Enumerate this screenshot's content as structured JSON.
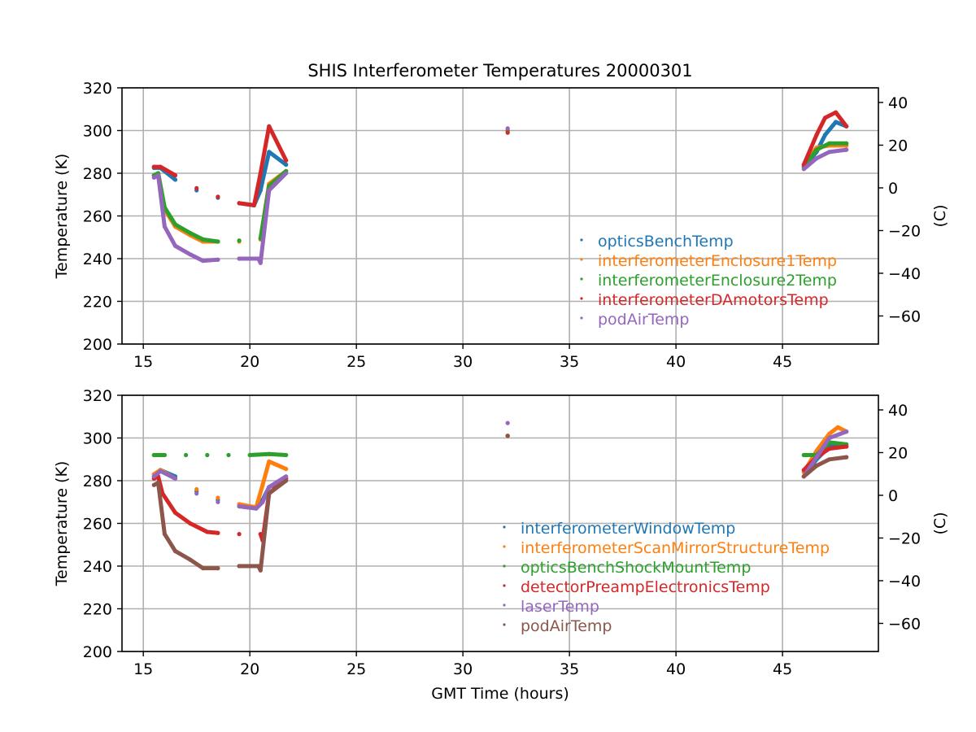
{
  "figure": {
    "title": "SHIS Interferometer Temperatures 20000301",
    "xlabel": "GMT Time (hours)"
  },
  "chart_data": [
    {
      "type": "scatter",
      "ylabel": "Temperature (K)",
      "ylabel_right": "(C)",
      "xlim": [
        14,
        49.5
      ],
      "ylim": [
        200,
        320
      ],
      "xticks": [
        15,
        20,
        25,
        30,
        35,
        40,
        45
      ],
      "yticks": [
        200,
        220,
        240,
        260,
        280,
        300,
        320
      ],
      "yticks_right": [
        40,
        20,
        0,
        -20,
        -40,
        -60
      ],
      "grid": true,
      "legend_position": "center-right",
      "series": [
        {
          "name": "opticsBenchTemp",
          "color": "#1f77b4",
          "points": [
            [
              15.5,
              282.5
            ],
            [
              15.8,
              282.5
            ],
            [
              16.5,
              277
            ],
            [
              17.5,
              272
            ],
            [
              18.5,
              268.5
            ],
            [
              19.5,
              266
            ],
            [
              20.2,
              265
            ],
            [
              20.5,
              272
            ],
            [
              20.9,
              290
            ],
            [
              21.7,
              284
            ],
            [
              32.1,
              300
            ],
            [
              46.0,
              283
            ],
            [
              46.6,
              290
            ],
            [
              47.0,
              298
            ],
            [
              47.5,
              304
            ],
            [
              48.0,
              302
            ]
          ]
        },
        {
          "name": "interferometerEnclosure1Temp",
          "color": "#ff7f0e",
          "points": [
            [
              15.5,
              279
            ],
            [
              15.7,
              280
            ],
            [
              16.0,
              263
            ],
            [
              16.5,
              255
            ],
            [
              17.2,
              251
            ],
            [
              17.8,
              248
            ],
            [
              18.5,
              248
            ],
            [
              19.5,
              248
            ],
            [
              20.5,
              249
            ],
            [
              20.9,
              275
            ],
            [
              21.7,
              281
            ],
            [
              32.1,
              300
            ],
            [
              46.0,
              284
            ],
            [
              46.6,
              292
            ],
            [
              47.2,
              293
            ],
            [
              48.0,
              293
            ]
          ]
        },
        {
          "name": "interferometerEnclosure2Temp",
          "color": "#2ca02c",
          "points": [
            [
              15.5,
              279
            ],
            [
              15.7,
              280
            ],
            [
              16.0,
              264
            ],
            [
              16.5,
              256
            ],
            [
              17.2,
              252
            ],
            [
              17.8,
              249
            ],
            [
              18.5,
              248
            ],
            [
              19.5,
              248.5
            ],
            [
              20.5,
              249.5
            ],
            [
              20.9,
              274
            ],
            [
              21.7,
              281
            ],
            [
              32.1,
              300
            ],
            [
              46.0,
              283
            ],
            [
              46.6,
              291
            ],
            [
              47.2,
              294
            ],
            [
              48.0,
              294
            ]
          ]
        },
        {
          "name": "interferometerDAmotorsTemp",
          "color": "#d62728",
          "points": [
            [
              15.5,
              283
            ],
            [
              15.8,
              283
            ],
            [
              16.5,
              279
            ],
            [
              17.5,
              273
            ],
            [
              18.5,
              269
            ],
            [
              19.5,
              266
            ],
            [
              20.2,
              265
            ],
            [
              20.5,
              280
            ],
            [
              20.9,
              302
            ],
            [
              21.7,
              286
            ],
            [
              32.1,
              299
            ],
            [
              46.0,
              284
            ],
            [
              46.6,
              298
            ],
            [
              47.0,
              306
            ],
            [
              47.5,
              308.5
            ],
            [
              48.0,
              302
            ]
          ]
        },
        {
          "name": "podAirTemp",
          "color": "#9467bd",
          "points": [
            [
              15.5,
              278
            ],
            [
              15.7,
              279
            ],
            [
              16.0,
              255
            ],
            [
              16.5,
              246
            ],
            [
              17.2,
              242
            ],
            [
              17.8,
              239
            ],
            [
              18.5,
              239.5
            ],
            [
              19.5,
              240
            ],
            [
              20.4,
              240
            ],
            [
              20.5,
              238
            ],
            [
              20.9,
              272
            ],
            [
              21.7,
              280
            ],
            [
              32.1,
              301
            ],
            [
              46.0,
              282
            ],
            [
              46.6,
              287
            ],
            [
              47.2,
              290
            ],
            [
              48.0,
              291
            ]
          ]
        }
      ]
    },
    {
      "type": "scatter",
      "ylabel": "Temperature (K)",
      "ylabel_right": "(C)",
      "xlim": [
        14,
        49.5
      ],
      "ylim": [
        200,
        320
      ],
      "xticks": [
        15,
        20,
        25,
        30,
        35,
        40,
        45
      ],
      "yticks": [
        200,
        220,
        240,
        260,
        280,
        300,
        320
      ],
      "yticks_right": [
        40,
        20,
        0,
        -20,
        -40,
        -60
      ],
      "grid": true,
      "legend_position": "center-right",
      "series": [
        {
          "name": "interferometerWindowTemp",
          "color": "#1f77b4",
          "points": [
            [
              15.5,
              282
            ],
            [
              15.8,
              285
            ],
            [
              16.5,
              282
            ],
            [
              17.5,
              275
            ],
            [
              18.5,
              271
            ],
            [
              19.5,
              268
            ],
            [
              20.3,
              267
            ],
            [
              20.6,
              271
            ],
            [
              20.9,
              277
            ],
            [
              21.7,
              281
            ],
            [
              32.1,
              301
            ],
            [
              46.0,
              282
            ],
            [
              46.6,
              290
            ],
            [
              47.2,
              296
            ],
            [
              48.0,
              296
            ]
          ]
        },
        {
          "name": "interferometerScanMirrorStructureTemp",
          "color": "#ff7f0e",
          "points": [
            [
              15.5,
              283
            ],
            [
              15.8,
              285
            ],
            [
              16.5,
              281
            ],
            [
              17.5,
              276
            ],
            [
              18.5,
              272
            ],
            [
              19.5,
              269
            ],
            [
              20.3,
              267.5
            ],
            [
              20.6,
              278
            ],
            [
              20.9,
              289
            ],
            [
              21.7,
              285.5
            ],
            [
              32.1,
              301
            ],
            [
              46.0,
              284
            ],
            [
              46.6,
              294
            ],
            [
              47.2,
              302
            ],
            [
              47.6,
              305
            ],
            [
              48.0,
              303
            ]
          ]
        },
        {
          "name": "opticsBenchShockMountTemp",
          "color": "#2ca02c",
          "points": [
            [
              15.5,
              292
            ],
            [
              16.0,
              292
            ],
            [
              17.0,
              292
            ],
            [
              18.0,
              292
            ],
            [
              19.0,
              292
            ],
            [
              20.0,
              292
            ],
            [
              20.9,
              292.5
            ],
            [
              21.7,
              292
            ],
            [
              46.0,
              292
            ],
            [
              46.6,
              292
            ],
            [
              47.2,
              298
            ],
            [
              48.0,
              297
            ]
          ]
        },
        {
          "name": "detectorPreampElectronicsTemp",
          "color": "#d62728",
          "points": [
            [
              15.5,
              281
            ],
            [
              15.7,
              282
            ],
            [
              15.9,
              274
            ],
            [
              16.5,
              265
            ],
            [
              17.2,
              260
            ],
            [
              18.0,
              256
            ],
            [
              18.5,
              255.5
            ],
            [
              19.5,
              255
            ],
            [
              20.5,
              255
            ],
            [
              20.6,
              252
            ],
            [
              20.9,
              274
            ],
            [
              21.7,
              281
            ],
            [
              32.1,
              301
            ],
            [
              46.0,
              285
            ],
            [
              46.6,
              291
            ],
            [
              47.2,
              295
            ],
            [
              48.0,
              296
            ]
          ]
        },
        {
          "name": "laserTemp",
          "color": "#9467bd",
          "points": [
            [
              15.5,
              282
            ],
            [
              15.8,
              284.5
            ],
            [
              16.5,
              281
            ],
            [
              17.5,
              274
            ],
            [
              18.5,
              270
            ],
            [
              19.5,
              268
            ],
            [
              20.3,
              267
            ],
            [
              20.6,
              270
            ],
            [
              20.9,
              277
            ],
            [
              21.7,
              282
            ],
            [
              32.1,
              307
            ],
            [
              46.0,
              282
            ],
            [
              46.6,
              291
            ],
            [
              47.2,
              300
            ],
            [
              48.0,
              303
            ]
          ]
        },
        {
          "name": "podAirTemp",
          "color": "#8c564b",
          "points": [
            [
              15.5,
              278
            ],
            [
              15.7,
              279
            ],
            [
              16.0,
              255
            ],
            [
              16.5,
              247
            ],
            [
              17.2,
              243
            ],
            [
              17.8,
              239
            ],
            [
              18.5,
              239
            ],
            [
              19.5,
              240
            ],
            [
              20.4,
              240
            ],
            [
              20.5,
              238
            ],
            [
              20.9,
              274
            ],
            [
              21.7,
              280
            ],
            [
              32.1,
              301
            ],
            [
              46.0,
              282
            ],
            [
              46.6,
              287
            ],
            [
              47.2,
              290
            ],
            [
              48.0,
              291
            ]
          ]
        }
      ]
    }
  ]
}
